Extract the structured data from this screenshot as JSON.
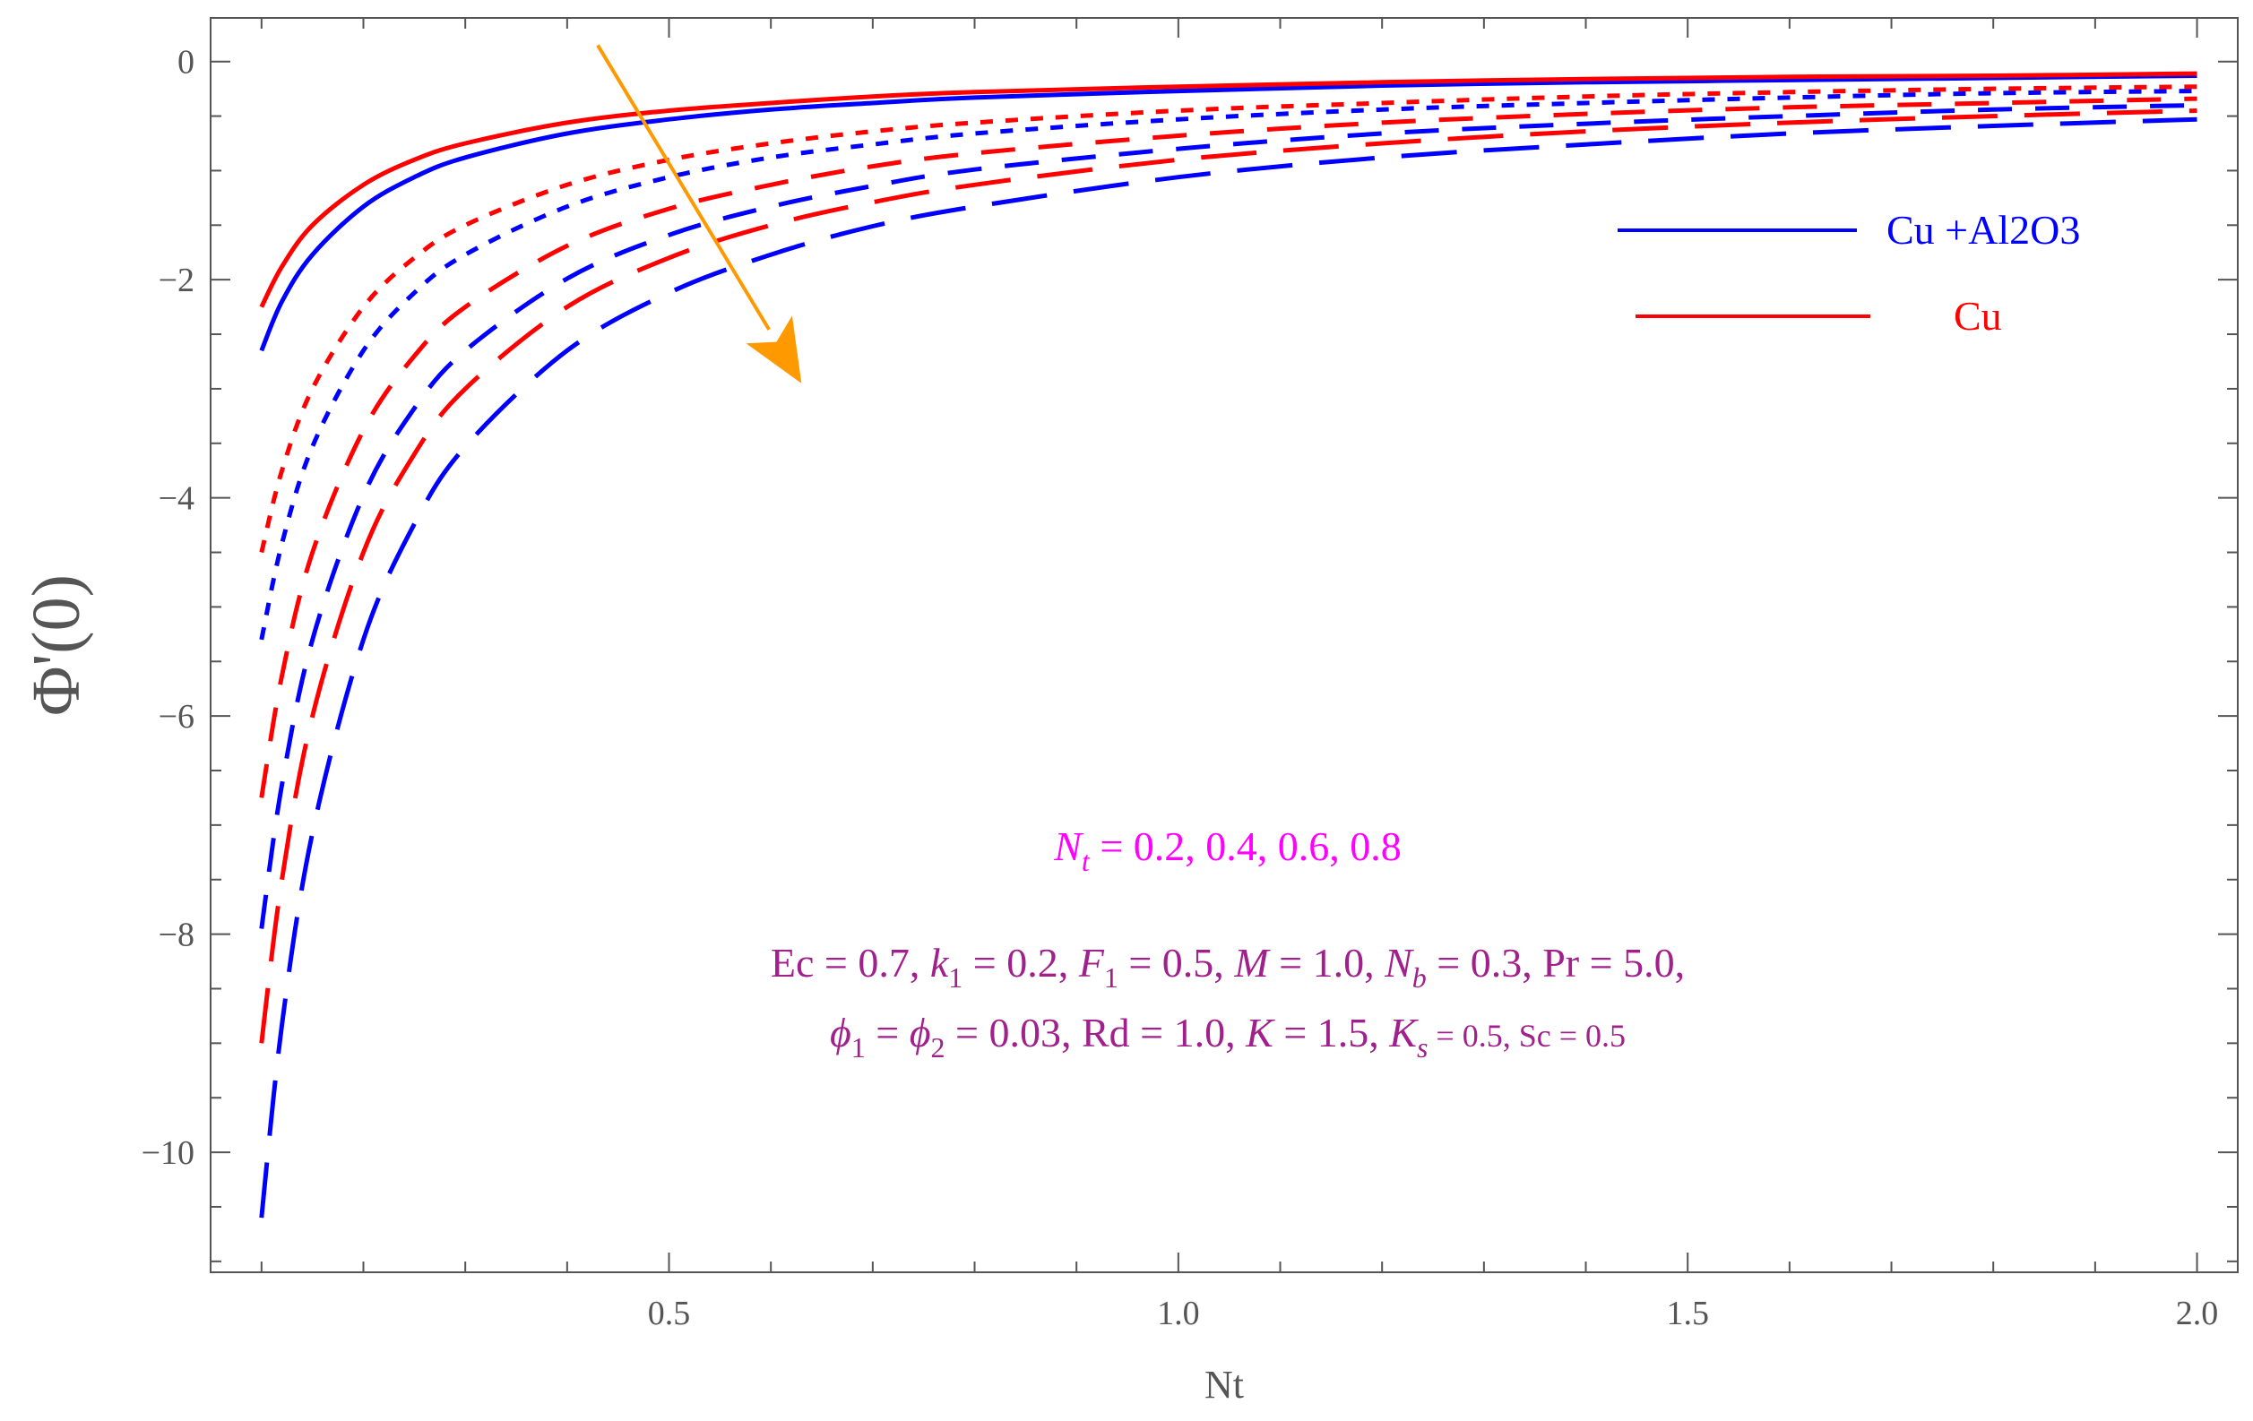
{
  "chart_data": {
    "type": "line",
    "xlabel": "Nt",
    "ylabel": "Φ'(0)",
    "xlim": [
      0.05,
      2.04
    ],
    "ylim": [
      -11.1,
      0.4
    ],
    "x_ticks": [
      0.5,
      1.0,
      1.5,
      2.0
    ],
    "x_tick_labels": [
      "0.5",
      "1.0",
      "1.5",
      "2.0"
    ],
    "y_ticks": [
      0,
      -2,
      -4,
      -6,
      -8,
      -10
    ],
    "y_tick_labels": [
      "0",
      "−2",
      "−4",
      "−6",
      "−8",
      "−10"
    ],
    "x_range": [
      0.1,
      2.0
    ],
    "series": [
      {
        "group": "Cu +Al2O3",
        "nt_param": 0.2,
        "color": "#0000ff",
        "dash": "solid",
        "points": [
          [
            0.1,
            -2.65
          ],
          [
            0.12,
            -2.2
          ],
          [
            0.15,
            -1.77
          ],
          [
            0.2,
            -1.33
          ],
          [
            0.25,
            -1.06
          ],
          [
            0.3,
            -0.88
          ],
          [
            0.4,
            -0.66
          ],
          [
            0.5,
            -0.53
          ],
          [
            0.6,
            -0.44
          ],
          [
            0.7,
            -0.38
          ],
          [
            0.8,
            -0.33
          ],
          [
            1.0,
            -0.27
          ],
          [
            1.2,
            -0.22
          ],
          [
            1.4,
            -0.19
          ],
          [
            1.6,
            -0.17
          ],
          [
            1.8,
            -0.15
          ],
          [
            2.0,
            -0.13
          ]
        ]
      },
      {
        "group": "Cu",
        "nt_param": 0.2,
        "color": "#ff0000",
        "dash": "solid",
        "points": [
          [
            0.1,
            -2.25
          ],
          [
            0.12,
            -1.88
          ],
          [
            0.15,
            -1.5
          ],
          [
            0.2,
            -1.13
          ],
          [
            0.25,
            -0.9
          ],
          [
            0.3,
            -0.75
          ],
          [
            0.4,
            -0.56
          ],
          [
            0.5,
            -0.45
          ],
          [
            0.6,
            -0.38
          ],
          [
            0.7,
            -0.32
          ],
          [
            0.8,
            -0.28
          ],
          [
            1.0,
            -0.23
          ],
          [
            1.2,
            -0.19
          ],
          [
            1.4,
            -0.16
          ],
          [
            1.6,
            -0.14
          ],
          [
            1.8,
            -0.13
          ],
          [
            2.0,
            -0.11
          ]
        ]
      },
      {
        "group": "Cu +Al2O3",
        "nt_param": 0.4,
        "color": "#0000ff",
        "dash": "short",
        "points": [
          [
            0.1,
            -5.3
          ],
          [
            0.12,
            -4.42
          ],
          [
            0.15,
            -3.53
          ],
          [
            0.2,
            -2.65
          ],
          [
            0.25,
            -2.12
          ],
          [
            0.3,
            -1.77
          ],
          [
            0.4,
            -1.33
          ],
          [
            0.5,
            -1.06
          ],
          [
            0.6,
            -0.88
          ],
          [
            0.7,
            -0.76
          ],
          [
            0.8,
            -0.66
          ],
          [
            1.0,
            -0.53
          ],
          [
            1.2,
            -0.44
          ],
          [
            1.4,
            -0.38
          ],
          [
            1.6,
            -0.33
          ],
          [
            1.8,
            -0.29
          ],
          [
            2.0,
            -0.27
          ]
        ]
      },
      {
        "group": "Cu",
        "nt_param": 0.4,
        "color": "#ff0000",
        "dash": "short",
        "points": [
          [
            0.1,
            -4.5
          ],
          [
            0.12,
            -3.75
          ],
          [
            0.15,
            -3.0
          ],
          [
            0.2,
            -2.25
          ],
          [
            0.25,
            -1.8
          ],
          [
            0.3,
            -1.5
          ],
          [
            0.4,
            -1.13
          ],
          [
            0.5,
            -0.9
          ],
          [
            0.6,
            -0.75
          ],
          [
            0.7,
            -0.64
          ],
          [
            0.8,
            -0.56
          ],
          [
            1.0,
            -0.45
          ],
          [
            1.2,
            -0.38
          ],
          [
            1.4,
            -0.32
          ],
          [
            1.6,
            -0.28
          ],
          [
            1.8,
            -0.25
          ],
          [
            2.0,
            -0.23
          ]
        ]
      },
      {
        "group": "Cu +Al2O3",
        "nt_param": 0.6,
        "color": "#0000ff",
        "dash": "medium",
        "points": [
          [
            0.1,
            -7.95
          ],
          [
            0.12,
            -6.63
          ],
          [
            0.15,
            -5.3
          ],
          [
            0.2,
            -3.98
          ],
          [
            0.25,
            -3.18
          ],
          [
            0.3,
            -2.65
          ],
          [
            0.4,
            -1.99
          ],
          [
            0.5,
            -1.59
          ],
          [
            0.6,
            -1.33
          ],
          [
            0.7,
            -1.14
          ],
          [
            0.8,
            -0.99
          ],
          [
            1.0,
            -0.8
          ],
          [
            1.2,
            -0.66
          ],
          [
            1.4,
            -0.57
          ],
          [
            1.6,
            -0.5
          ],
          [
            1.8,
            -0.44
          ],
          [
            2.0,
            -0.4
          ]
        ]
      },
      {
        "group": "Cu",
        "nt_param": 0.6,
        "color": "#ff0000",
        "dash": "medium",
        "points": [
          [
            0.1,
            -6.75
          ],
          [
            0.12,
            -5.63
          ],
          [
            0.15,
            -4.5
          ],
          [
            0.2,
            -3.38
          ],
          [
            0.25,
            -2.7
          ],
          [
            0.3,
            -2.25
          ],
          [
            0.4,
            -1.69
          ],
          [
            0.5,
            -1.35
          ],
          [
            0.6,
            -1.13
          ],
          [
            0.7,
            -0.96
          ],
          [
            0.8,
            -0.84
          ],
          [
            1.0,
            -0.68
          ],
          [
            1.2,
            -0.56
          ],
          [
            1.4,
            -0.48
          ],
          [
            1.6,
            -0.42
          ],
          [
            1.8,
            -0.38
          ],
          [
            2.0,
            -0.34
          ]
        ]
      },
      {
        "group": "Cu +Al2O3",
        "nt_param": 0.8,
        "color": "#0000ff",
        "dash": "long",
        "points": [
          [
            0.1,
            -10.6
          ],
          [
            0.12,
            -8.83
          ],
          [
            0.15,
            -7.07
          ],
          [
            0.2,
            -5.3
          ],
          [
            0.25,
            -4.24
          ],
          [
            0.3,
            -3.53
          ],
          [
            0.4,
            -2.65
          ],
          [
            0.5,
            -2.12
          ],
          [
            0.6,
            -1.77
          ],
          [
            0.7,
            -1.51
          ],
          [
            0.8,
            -1.33
          ],
          [
            1.0,
            -1.06
          ],
          [
            1.2,
            -0.88
          ],
          [
            1.4,
            -0.76
          ],
          [
            1.6,
            -0.66
          ],
          [
            1.8,
            -0.59
          ],
          [
            2.0,
            -0.53
          ]
        ]
      },
      {
        "group": "Cu",
        "nt_param": 0.8,
        "color": "#ff0000",
        "dash": "long",
        "points": [
          [
            0.1,
            -9.0
          ],
          [
            0.12,
            -7.5
          ],
          [
            0.15,
            -6.0
          ],
          [
            0.2,
            -4.5
          ],
          [
            0.25,
            -3.6
          ],
          [
            0.3,
            -3.0
          ],
          [
            0.4,
            -2.25
          ],
          [
            0.5,
            -1.8
          ],
          [
            0.6,
            -1.5
          ],
          [
            0.7,
            -1.29
          ],
          [
            0.8,
            -1.13
          ],
          [
            1.0,
            -0.9
          ],
          [
            1.2,
            -0.75
          ],
          [
            1.4,
            -0.64
          ],
          [
            1.6,
            -0.56
          ],
          [
            1.8,
            -0.5
          ],
          [
            2.0,
            -0.45
          ]
        ]
      }
    ],
    "legend": {
      "placement": "top-right",
      "entries": [
        {
          "label": "Cu +Al2O3",
          "color": "#0000ff"
        },
        {
          "label": "Cu",
          "color": "#ff0000"
        }
      ]
    },
    "arrow": {
      "from": [
        0.43,
        0.15
      ],
      "to": [
        0.63,
        -2.95
      ],
      "color": "#ff9900"
    },
    "annotations": {
      "nt_label": {
        "text_var": "N",
        "text_sub": "t",
        "text_rest": " = 0.2, 0.4, 0.6, 0.8",
        "color": "#ff00ff"
      },
      "params_line1": [
        {
          "t": "Ec = 0.7, "
        },
        {
          "t": "k",
          "i": true
        },
        {
          "t": "1",
          "sub": true
        },
        {
          "t": " = 0.2, "
        },
        {
          "t": "F",
          "i": true
        },
        {
          "t": "1",
          "sub": true
        },
        {
          "t": " = 0.5, "
        },
        {
          "t": "M",
          "i": true
        },
        {
          "t": " = 1.0, "
        },
        {
          "t": "N",
          "i": true
        },
        {
          "t": "b",
          "sub": true,
          "i": true
        },
        {
          "t": " = 0.3, Pr = 5.0,"
        }
      ],
      "params_line2": [
        {
          "t": "ϕ",
          "i": true
        },
        {
          "t": "1",
          "sub": true
        },
        {
          "t": " = "
        },
        {
          "t": "ϕ",
          "i": true
        },
        {
          "t": "2",
          "sub": true
        },
        {
          "t": " = 0.03, Rd = 1.0, "
        },
        {
          "t": "K",
          "i": true
        },
        {
          "t": " = 1.5, "
        },
        {
          "t": "K",
          "i": true
        },
        {
          "t": "s",
          "sub": true,
          "i": true
        },
        {
          "t": " = 0.5, Sc = 0.5",
          "small": true
        }
      ],
      "params_color": "#a0208c"
    },
    "grid": false
  }
}
